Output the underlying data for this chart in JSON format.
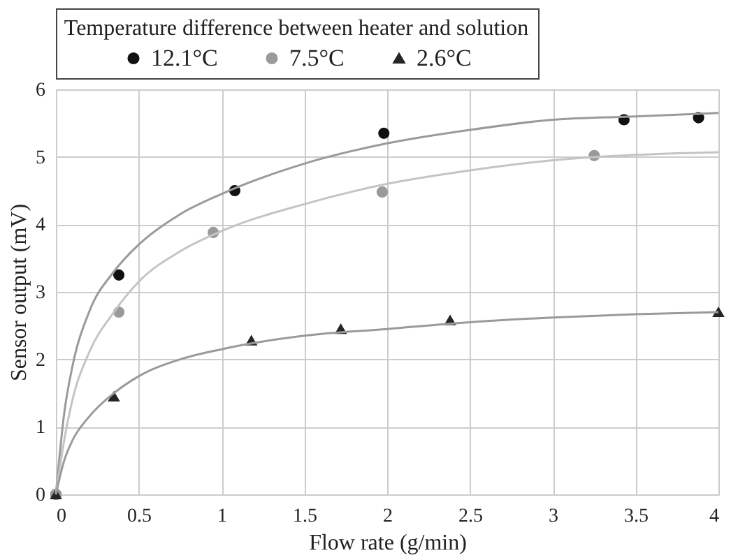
{
  "chart_data": {
    "type": "scatter",
    "xlabel": "Flow rate  (g/min)",
    "ylabel": "Sensor output  (mV)",
    "legend_title": "Temperature difference between heater and solution",
    "legend": "top",
    "grid": true,
    "xlim": [
      0,
      4
    ],
    "xticks": [
      0,
      0.5,
      1,
      1.5,
      2,
      2.5,
      3,
      3.5,
      4
    ],
    "ylim": [
      0,
      6
    ],
    "yticks": [
      0,
      1,
      2,
      3,
      4,
      5,
      6
    ],
    "series": [
      {
        "name": "12.1°C",
        "marker": "circle",
        "color": "#111111",
        "x": [
          0,
          0.38,
          1.08,
          1.98,
          3.43,
          3.88
        ],
        "values": [
          0,
          3.25,
          4.5,
          5.35,
          5.55,
          5.58
        ]
      },
      {
        "name": "7.5°C",
        "marker": "circle",
        "color": "#9a9a9a",
        "x": [
          0,
          0.38,
          0.95,
          1.97,
          3.25
        ],
        "values": [
          0,
          2.7,
          3.88,
          4.48,
          5.02
        ]
      },
      {
        "name": "2.6°C",
        "marker": "triangle",
        "color": "#262626",
        "x": [
          0,
          0.35,
          1.18,
          1.72,
          2.38,
          4.0
        ],
        "values": [
          0,
          1.45,
          2.28,
          2.45,
          2.58,
          2.7
        ]
      },
      {
        "type": "line",
        "marker": "none",
        "color": "#9a9a9a",
        "x": [
          0,
          0.05,
          0.1,
          0.2,
          0.35,
          0.5,
          0.75,
          1,
          1.5,
          2,
          2.5,
          3,
          3.5,
          4
        ],
        "values": [
          0,
          1.2,
          1.9,
          2.7,
          3.3,
          3.7,
          4.15,
          4.45,
          4.9,
          5.2,
          5.4,
          5.55,
          5.6,
          5.65
        ]
      },
      {
        "type": "line",
        "marker": "none",
        "color": "#c4c4c4",
        "x": [
          0,
          0.05,
          0.1,
          0.2,
          0.35,
          0.5,
          0.75,
          1,
          1.5,
          2,
          2.5,
          3,
          3.5,
          4
        ],
        "values": [
          0,
          0.8,
          1.4,
          2.1,
          2.7,
          3.15,
          3.6,
          3.9,
          4.3,
          4.6,
          4.8,
          4.95,
          5.03,
          5.07
        ]
      },
      {
        "type": "line",
        "marker": "none",
        "color": "#9a9a9a",
        "x": [
          0,
          0.05,
          0.1,
          0.2,
          0.35,
          0.5,
          0.75,
          1,
          1.5,
          2,
          2.5,
          3,
          3.5,
          4
        ],
        "values": [
          0,
          0.5,
          0.8,
          1.15,
          1.5,
          1.75,
          2.0,
          2.15,
          2.35,
          2.45,
          2.55,
          2.62,
          2.67,
          2.7
        ]
      }
    ]
  }
}
